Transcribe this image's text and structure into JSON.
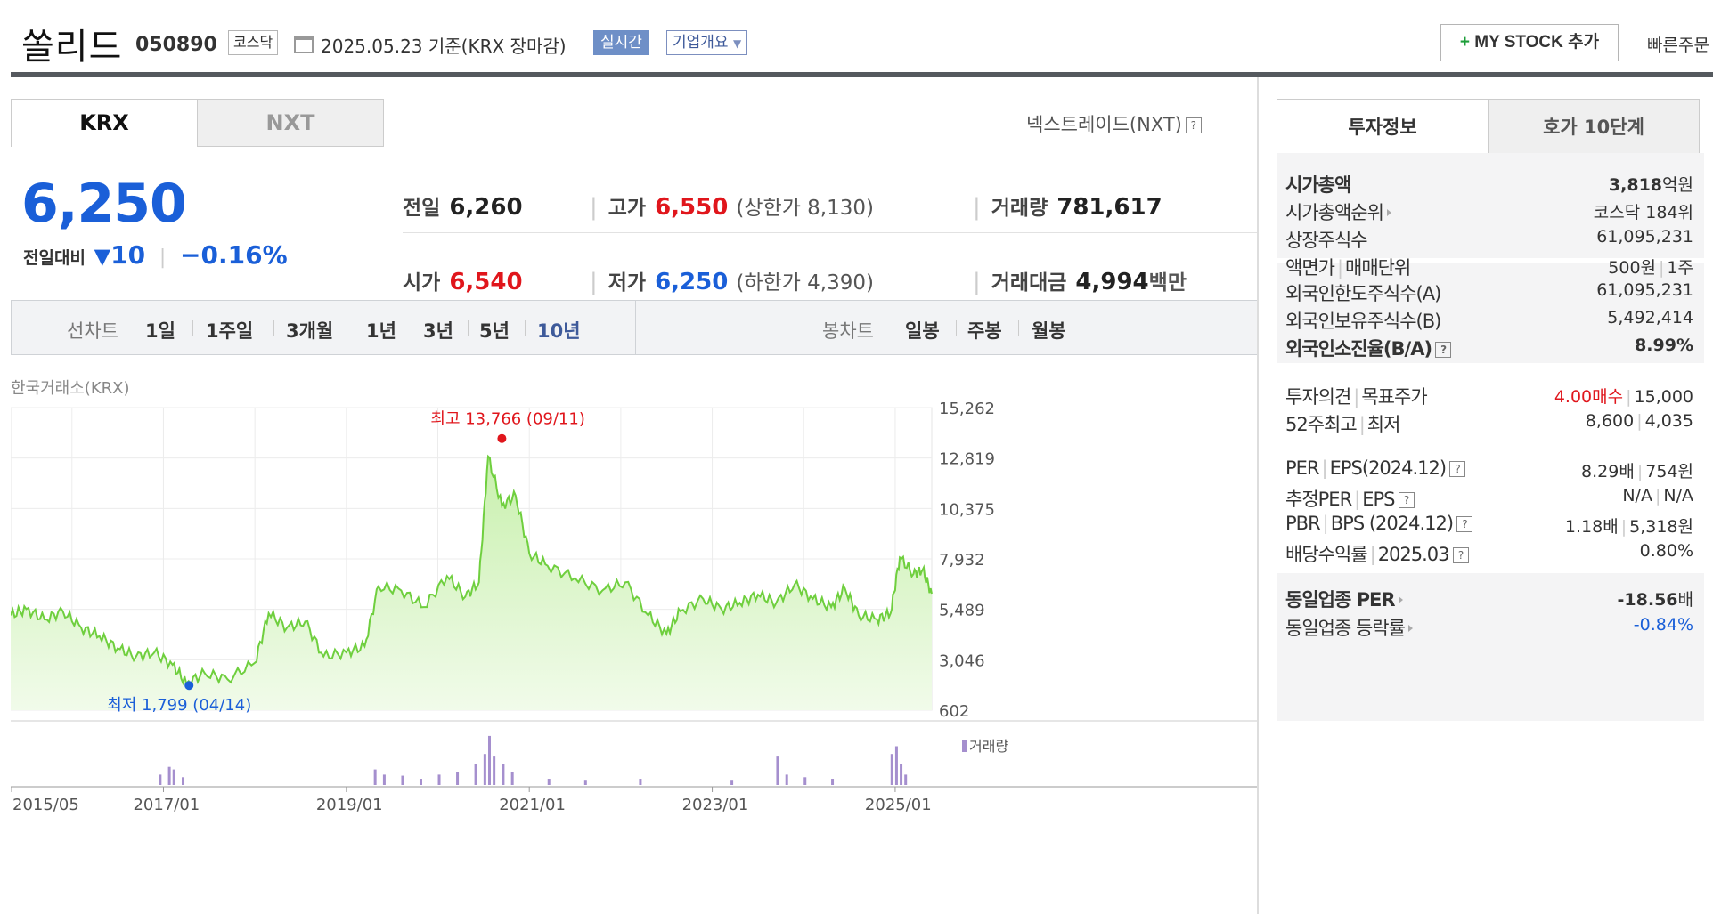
{
  "header": {
    "title": "쏠리드",
    "code": "050890",
    "market": "코스닥",
    "date_text": "2025.05.23  기준(KRX 장마감)",
    "realtime": "실시간",
    "company_overview": "기업개요",
    "my_stock": "MY STOCK 추가",
    "quick_order": "빠른주문"
  },
  "left_tabs": [
    "KRX",
    "NXT"
  ],
  "nxt_link": "넥스트레이드(NXT)",
  "price": {
    "current": "6,250",
    "change_label": "전일대비",
    "change": "10",
    "change_pct": "−0.16%"
  },
  "stats": {
    "prev_label": "전일",
    "prev": "6,260",
    "high_label": "고가",
    "high": "6,550",
    "upper_limit": "(상한가 8,130)",
    "volume_label": "거래량",
    "volume": "781,617",
    "open_label": "시가",
    "open": "6,540",
    "low_label": "저가",
    "low": "6,250",
    "lower_limit": "(하한가 4,390)",
    "amount_label": "거래대금",
    "amount": "4,994",
    "amount_unit": "백만"
  },
  "period_bar": {
    "line_label": "선차트",
    "line_items": [
      "1일",
      "1주일",
      "3개월",
      "1년",
      "3년",
      "5년",
      "10년"
    ],
    "selected_line": "10년",
    "candle_label": "봉차트",
    "candle_items": [
      "일봉",
      "주봉",
      "월봉"
    ]
  },
  "chart_source": "한국거래소(KRX)",
  "chart_data": {
    "type": "area",
    "title": "",
    "y_ticks": [
      "15,262",
      "12,819",
      "10,375",
      "7,932",
      "5,489",
      "3,046",
      "602"
    ],
    "y_tick_values": [
      15262,
      12819,
      10375,
      7932,
      5489,
      3046,
      602
    ],
    "ylim": [
      602,
      15262
    ],
    "x_ticks": [
      "2015/05",
      "2017/01",
      "2019/01",
      "2021/01",
      "2023/01",
      "2025/01"
    ],
    "x_tick_times": [
      2015.33,
      2017.0,
      2019.0,
      2021.0,
      2023.0,
      2025.0
    ],
    "xlim": [
      2015.33,
      2025.4
    ],
    "series": [
      {
        "values": [
          [
            2015.33,
            5200
          ],
          [
            2015.5,
            5500
          ],
          [
            2015.7,
            5000
          ],
          [
            2015.9,
            5400
          ],
          [
            2016.1,
            4600
          ],
          [
            2016.3,
            4200
          ],
          [
            2016.5,
            3600
          ],
          [
            2016.7,
            3200
          ],
          [
            2016.9,
            3400
          ],
          [
            2017.1,
            2800
          ],
          [
            2017.25,
            1900
          ],
          [
            2017.45,
            2400
          ],
          [
            2017.7,
            2100
          ],
          [
            2018.0,
            2900
          ],
          [
            2018.15,
            5300
          ],
          [
            2018.35,
            4600
          ],
          [
            2018.55,
            4900
          ],
          [
            2018.75,
            3200
          ],
          [
            2019.0,
            3400
          ],
          [
            2019.2,
            3700
          ],
          [
            2019.35,
            6600
          ],
          [
            2019.6,
            6400
          ],
          [
            2019.85,
            5600
          ],
          [
            2020.1,
            7100
          ],
          [
            2020.3,
            6100
          ],
          [
            2020.45,
            6800
          ],
          [
            2020.55,
            12900
          ],
          [
            2020.7,
            10500
          ],
          [
            2020.85,
            11000
          ],
          [
            2021.0,
            8200
          ],
          [
            2021.2,
            7600
          ],
          [
            2021.5,
            7000
          ],
          [
            2021.8,
            6400
          ],
          [
            2022.05,
            6800
          ],
          [
            2022.3,
            5200
          ],
          [
            2022.5,
            4300
          ],
          [
            2022.65,
            5400
          ],
          [
            2022.9,
            6000
          ],
          [
            2023.1,
            5500
          ],
          [
            2023.3,
            5800
          ],
          [
            2023.5,
            6200
          ],
          [
            2023.7,
            5800
          ],
          [
            2023.9,
            6700
          ],
          [
            2024.1,
            6000
          ],
          [
            2024.3,
            5600
          ],
          [
            2024.45,
            6500
          ],
          [
            2024.6,
            5200
          ],
          [
            2024.8,
            5000
          ],
          [
            2024.95,
            5300
          ],
          [
            2025.05,
            8000
          ],
          [
            2025.2,
            7200
          ],
          [
            2025.3,
            7400
          ],
          [
            2025.4,
            6250
          ]
        ]
      }
    ],
    "max_annotation": {
      "label": "최고 13,766 (09/11)",
      "x": 2020.7,
      "y": 13766
    },
    "min_annotation": {
      "label": "최저 1,799 (04/14)",
      "x": 2017.28,
      "y": 1799
    },
    "volume_label": "거래량",
    "volume_bars": [
      [
        2016.95,
        0.2
      ],
      [
        2017.05,
        0.35
      ],
      [
        2017.1,
        0.3
      ],
      [
        2017.2,
        0.15
      ],
      [
        2019.3,
        0.3
      ],
      [
        2019.4,
        0.2
      ],
      [
        2019.6,
        0.18
      ],
      [
        2019.8,
        0.12
      ],
      [
        2020.0,
        0.2
      ],
      [
        2020.2,
        0.25
      ],
      [
        2020.4,
        0.4
      ],
      [
        2020.5,
        0.6
      ],
      [
        2020.55,
        0.95
      ],
      [
        2020.6,
        0.55
      ],
      [
        2020.7,
        0.4
      ],
      [
        2020.8,
        0.25
      ],
      [
        2021.2,
        0.12
      ],
      [
        2021.6,
        0.1
      ],
      [
        2022.2,
        0.12
      ],
      [
        2023.2,
        0.1
      ],
      [
        2023.7,
        0.55
      ],
      [
        2023.8,
        0.2
      ],
      [
        2024.0,
        0.15
      ],
      [
        2024.3,
        0.12
      ],
      [
        2024.95,
        0.6
      ],
      [
        2025.0,
        0.75
      ],
      [
        2025.05,
        0.4
      ],
      [
        2025.1,
        0.2
      ]
    ],
    "colors": {
      "line": "#6fcf3e",
      "fill_top": "#c8f0ad",
      "fill_bottom": "#f1fbea",
      "volume": "#a58fce",
      "max": "#e0161c",
      "min": "#1a5fd8"
    }
  },
  "right_tabs": [
    "투자정보",
    "호가 10단계"
  ],
  "invest_info": {
    "group1": [
      {
        "k": "시가총액",
        "v": "3,818",
        "unit": "억원",
        "bold": true
      },
      {
        "k": "시가총액순위",
        "v": "코스닥 184위",
        "arrow": true
      },
      {
        "k": "상장주식수",
        "v": "61,095,231"
      },
      {
        "k": "액면가",
        "k2": "매매단위",
        "v": "500원",
        "v2": "1주"
      }
    ],
    "group2": [
      {
        "k": "외국인한도주식수(A)",
        "v": "61,095,231"
      },
      {
        "k": "외국인보유주식수(B)",
        "v": "5,492,414"
      },
      {
        "k": "외국인소진율(B/A)",
        "v": "8.99%",
        "bold": true,
        "help": true
      }
    ],
    "group3": [
      {
        "k": "투자의견",
        "k2": "목표주가",
        "v": "4.00매수",
        "v2": "15,000",
        "v_red": true
      },
      {
        "k": "52주최고",
        "k2": "최저",
        "v": "8,600",
        "v2": "4,035"
      }
    ],
    "group4": [
      {
        "k": "PER",
        "k2": "EPS(2024.12)",
        "v": "8.29배",
        "v2": "754원",
        "help": true
      },
      {
        "k": "추정PER",
        "k2": "EPS",
        "v": "N/A",
        "v2": "N/A",
        "help": true
      },
      {
        "k": "PBR",
        "k2": "BPS (2024.12)",
        "v": "1.18배",
        "v2": "5,318원",
        "help": true
      },
      {
        "k": "배당수익률",
        "k2": "2025.03",
        "v": "0.80%",
        "help": true
      }
    ],
    "group5": [
      {
        "k": "동일업종 PER",
        "v": "-18.56",
        "unit": "배",
        "bold": true,
        "arrow": true
      },
      {
        "k": "동일업종 등락률",
        "v": "-0.84%",
        "blue": true,
        "arrow": true
      }
    ]
  }
}
